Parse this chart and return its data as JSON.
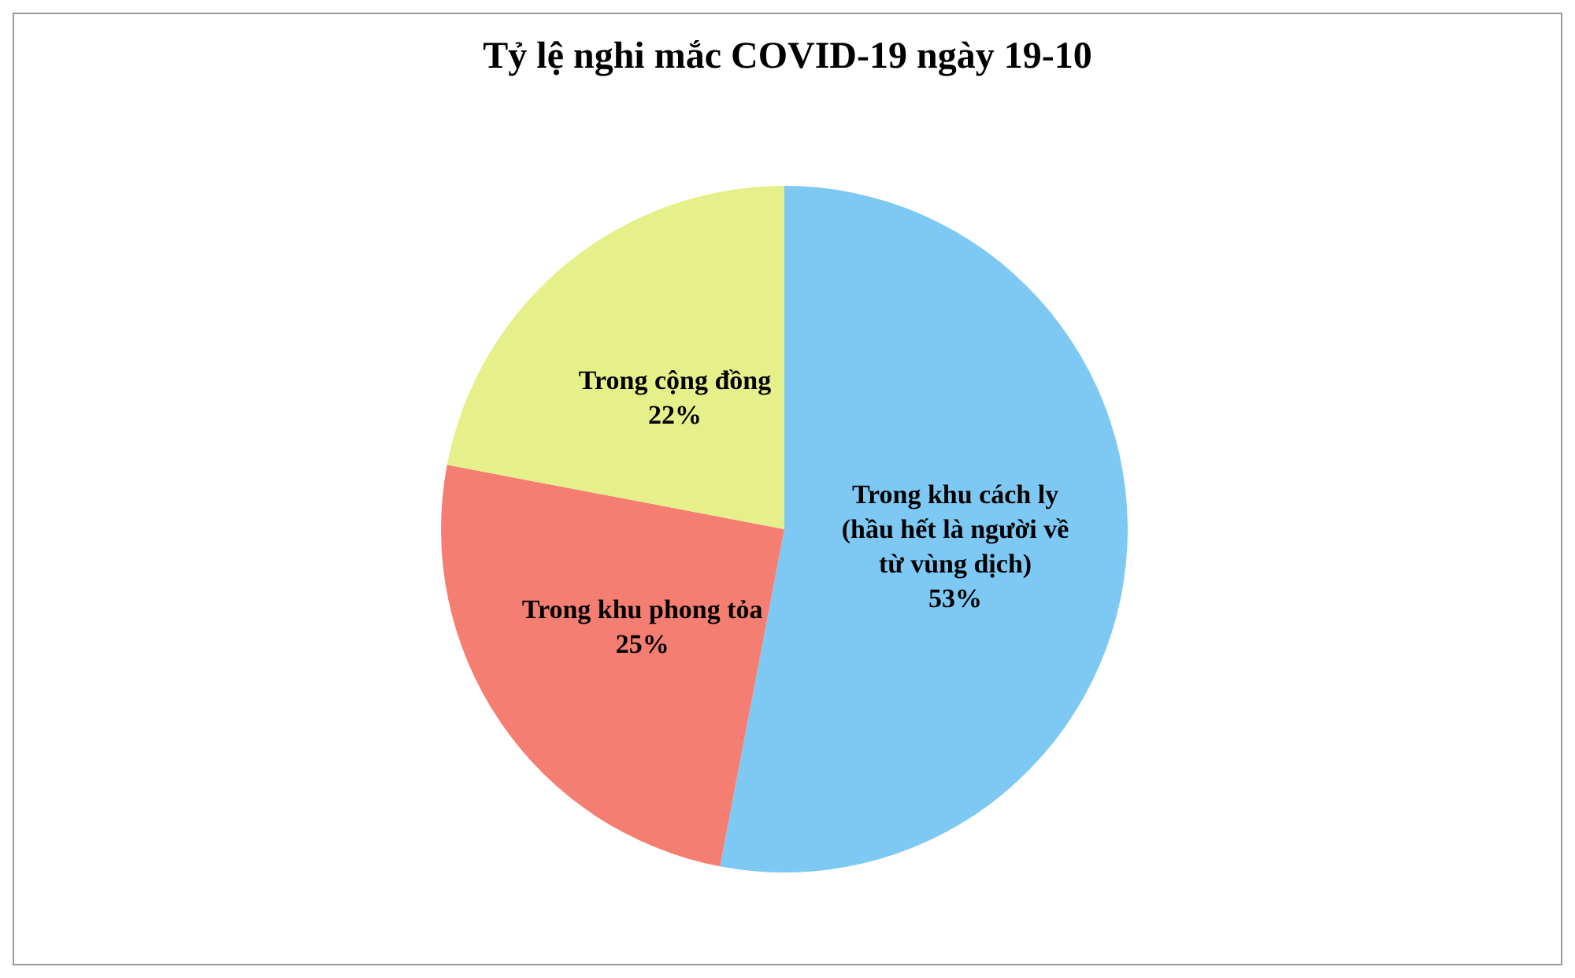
{
  "chart_data": {
    "type": "pie",
    "title": "Tỷ lệ nghi mắc COVID-19 ngày 19-10",
    "categories": [
      "Trong khu cách ly (hầu hết là người về từ vùng dịch)",
      "Trong khu phong tỏa",
      "Trong cộng đồng"
    ],
    "values": [
      53,
      25,
      22
    ],
    "colors": [
      "#7ec8f4",
      "#f47e72",
      "#e6f08a"
    ],
    "value_labels": [
      "53%",
      "25%",
      "22%"
    ],
    "legend": false
  }
}
